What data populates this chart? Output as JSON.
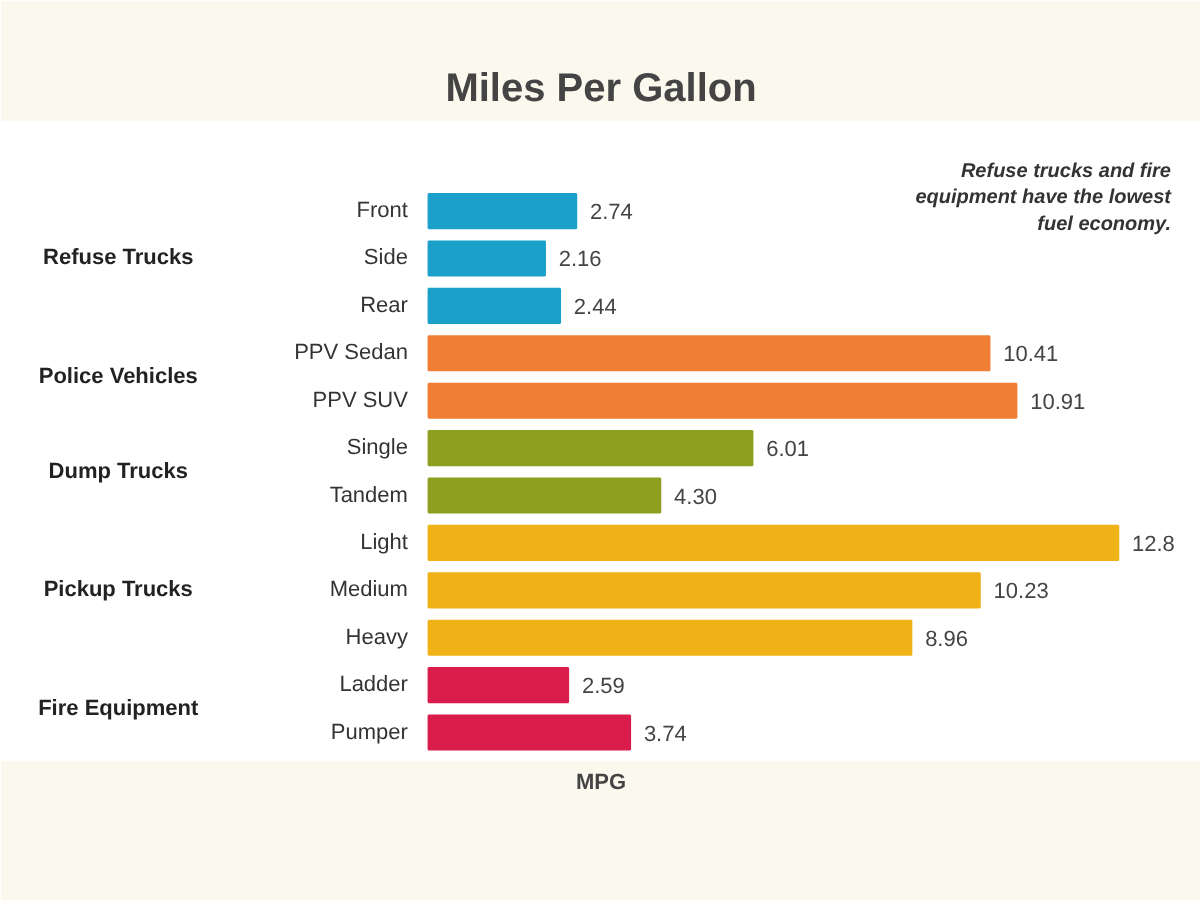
{
  "chart_data": {
    "type": "bar",
    "orientation": "horizontal",
    "title": "Miles Per Gallon",
    "xlabel": "MPG",
    "data_labels": true,
    "grid": false,
    "categories": [
      "Front",
      "Side",
      "Rear",
      "PPV Sedan",
      "PPV SUV",
      "Single",
      "Tandem",
      "Light",
      "Medium",
      "Heavy",
      "Ladder",
      "Pumper"
    ],
    "series": [
      {
        "color": "#1ba1c9",
        "values": [
          2.74,
          2.16,
          2.44,
          null,
          null,
          null,
          null,
          null,
          null,
          null,
          null,
          null
        ],
        "value_labels": [
          "2.74",
          "2.16",
          "2.44",
          null,
          null,
          null,
          null,
          null,
          null,
          null,
          null,
          null
        ]
      },
      {
        "color": "#f07f35",
        "values": [
          null,
          null,
          null,
          10.41,
          10.91,
          null,
          null,
          null,
          null,
          null,
          null,
          null
        ],
        "value_labels": [
          null,
          null,
          null,
          "10.41",
          "10.91",
          null,
          null,
          null,
          null,
          null,
          null,
          null
        ]
      },
      {
        "color": "#8e9f1f",
        "values": [
          null,
          null,
          null,
          null,
          null,
          6.01,
          4.3,
          null,
          null,
          null,
          null,
          null
        ],
        "value_labels": [
          null,
          null,
          null,
          null,
          null,
          "6.01",
          "4.30",
          null,
          null,
          null,
          null,
          null
        ]
      },
      {
        "color": "#efb318",
        "values": [
          null,
          null,
          null,
          null,
          null,
          null,
          null,
          12.8,
          10.23,
          8.96,
          null,
          null
        ],
        "value_labels": [
          null,
          null,
          null,
          null,
          null,
          null,
          null,
          "12.8",
          "10.23",
          "8.96",
          null,
          null
        ]
      },
      {
        "color": "#d91c4c",
        "values": [
          null,
          null,
          null,
          null,
          null,
          null,
          null,
          null,
          null,
          null,
          2.59,
          3.74
        ],
        "value_labels": [
          null,
          null,
          null,
          null,
          null,
          null,
          null,
          null,
          null,
          null,
          "2.59",
          "3.74"
        ]
      }
    ],
    "annotations": [
      "Refuse trucks and fire equipment have the lowest fuel economy.",
      "Refuse Trucks",
      "Police Vehicles",
      "Dump Trucks",
      "Pickup Trucks",
      "Fire Equipment"
    ]
  }
}
